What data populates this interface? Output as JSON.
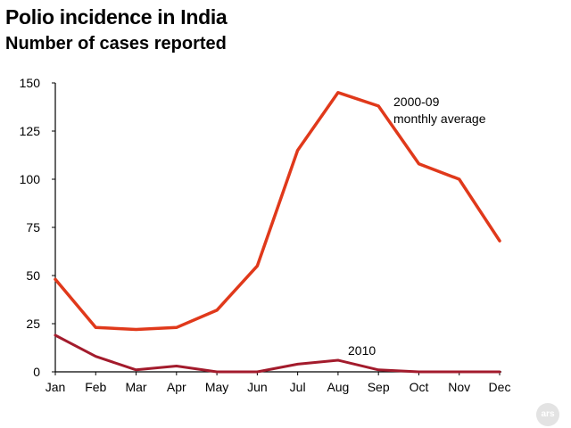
{
  "chart_data": {
    "type": "line",
    "title": "Polio incidence in India",
    "subtitle": "Number of cases reported",
    "xlabel": "",
    "ylabel": "",
    "categories": [
      "Jan",
      "Feb",
      "Mar",
      "Apr",
      "May",
      "Jun",
      "Jul",
      "Aug",
      "Sep",
      "Oct",
      "Nov",
      "Dec"
    ],
    "ylim": [
      0,
      150
    ],
    "yticks": [
      0,
      25,
      50,
      75,
      100,
      125,
      150
    ],
    "grid": false,
    "legend": "direct labels on lines",
    "series": [
      {
        "label_lines": [
          "2000-09",
          "monthly average"
        ],
        "color": "#e0391b",
        "values": [
          48,
          23,
          22,
          23,
          32,
          55,
          115,
          145,
          138,
          108,
          100,
          68
        ]
      },
      {
        "label_lines": [
          "2010"
        ],
        "color": "#a31b2c",
        "values": [
          19,
          8,
          1,
          3,
          0,
          0,
          4,
          6,
          1,
          0,
          0,
          0
        ]
      }
    ]
  },
  "watermark": "ars"
}
